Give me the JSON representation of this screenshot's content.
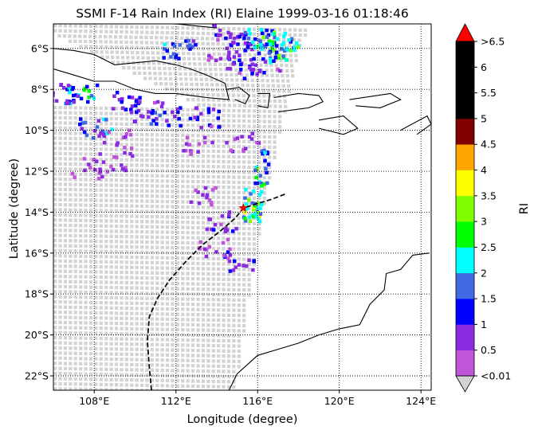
{
  "title": "SSMI F-14 Rain Index (RI) Elaine 1999-03-16 01:18:46",
  "xlabel": "Longitude (degree)",
  "ylabel": "Latitude (degree)",
  "colorbar": {
    "label": "RI",
    "tick_labels": [
      "<0.01",
      "0.5",
      "1",
      "1.5",
      "2",
      "2.5",
      "3",
      "3.5",
      "4",
      "4.5",
      "5",
      "5.5",
      "6",
      ">6.5"
    ],
    "levels": [
      0.01,
      0.5,
      1,
      1.5,
      2,
      2.5,
      3,
      3.5,
      4,
      4.5,
      5,
      5.5,
      6,
      6.5
    ],
    "colors": [
      "#bf55d9",
      "#8a2be2",
      "#0000ff",
      "#4169e1",
      "#00ffff",
      "#00ff00",
      "#7fff00",
      "#ffff00",
      "#ffa500",
      "#800000",
      "#000000",
      "#000000",
      "#000000"
    ],
    "under_color": "#d3d3d3",
    "over_color": "#ff0000"
  },
  "chart_data": {
    "type": "map",
    "lon_range": [
      106,
      124.5
    ],
    "lat_range": [
      -22.7,
      -4.8
    ],
    "x_ticks": [
      108,
      112,
      116,
      120,
      124
    ],
    "x_tick_labels": [
      "108°E",
      "112°E",
      "116°E",
      "120°E",
      "124°E"
    ],
    "y_ticks": [
      -6,
      -8,
      -10,
      -12,
      -14,
      -16,
      -18,
      -20,
      -22
    ],
    "y_tick_labels": [
      "6°S",
      "8°S",
      "10°S",
      "12°S",
      "14°S",
      "16°S",
      "18°S",
      "20°S",
      "22°S"
    ],
    "grid": "dotted",
    "storm_center": {
      "lon": 115.3,
      "lat": -13.8
    },
    "storm_track": [
      [
        110.8,
        -22.7
      ],
      [
        110.7,
        -21.6
      ],
      [
        110.6,
        -20.3
      ],
      [
        110.7,
        -19.1
      ],
      [
        111.1,
        -18.2
      ],
      [
        111.7,
        -17.3
      ],
      [
        112.5,
        -16.4
      ],
      [
        113.3,
        -15.6
      ],
      [
        114.2,
        -14.9
      ],
      [
        114.9,
        -14.3
      ],
      [
        115.3,
        -13.8
      ],
      [
        115.9,
        -13.6
      ],
      [
        116.6,
        -13.4
      ],
      [
        117.4,
        -13.1
      ]
    ],
    "swath_edges": {
      "east": [
        [
          114.8,
          -22.7
        ],
        [
          115.8,
          -16.0
        ],
        [
          116.3,
          -13.0
        ],
        [
          117.0,
          -10.0
        ],
        [
          117.9,
          -6.0
        ],
        [
          118.4,
          -4.8
        ]
      ],
      "west": [
        [
          106.0,
          -8.8
        ],
        [
          106.0,
          -22.7
        ]
      ]
    },
    "rain_areas": [
      {
        "lon": 114.5,
        "lat": -5.2,
        "ri": 1.0
      },
      {
        "lon": 115.4,
        "lat": -5.6,
        "ri": 1.2
      },
      {
        "lon": 116.1,
        "lat": -5.4,
        "ri": 2.2
      },
      {
        "lon": 116.8,
        "lat": -5.6,
        "ri": 2.7
      },
      {
        "lon": 117.2,
        "lat": -6.1,
        "ri": 2.8
      },
      {
        "lon": 116.3,
        "lat": -6.6,
        "ri": 1.1
      },
      {
        "lon": 115.2,
        "lat": -6.9,
        "ri": 1.1
      },
      {
        "lon": 114.3,
        "lat": -6.0,
        "ri": 0.8
      },
      {
        "lon": 112.1,
        "lat": -6.0,
        "ri": 1.7
      },
      {
        "lon": 107.3,
        "lat": -8.2,
        "ri": 2.2
      },
      {
        "lon": 106.4,
        "lat": -8.1,
        "ri": 1.2
      },
      {
        "lon": 109.4,
        "lat": -8.5,
        "ri": 1.1
      },
      {
        "lon": 110.5,
        "lat": -9.0,
        "ri": 1.0
      },
      {
        "lon": 111.4,
        "lat": -9.2,
        "ri": 1.3
      },
      {
        "lon": 113.4,
        "lat": -9.3,
        "ri": 1.1
      },
      {
        "lon": 108.0,
        "lat": -9.8,
        "ri": 1.7
      },
      {
        "lon": 109.0,
        "lat": -10.4,
        "ri": 0.5
      },
      {
        "lon": 113.0,
        "lat": -10.6,
        "ri": 0.5
      },
      {
        "lon": 115.2,
        "lat": -10.5,
        "ri": 0.7
      },
      {
        "lon": 116.9,
        "lat": -11.2,
        "ri": 2.2
      },
      {
        "lon": 116.6,
        "lat": -12.2,
        "ri": 2.6
      },
      {
        "lon": 116.1,
        "lat": -13.3,
        "ri": 3.1
      },
      {
        "lon": 115.9,
        "lat": -14.0,
        "ri": 2.9
      },
      {
        "lon": 114.2,
        "lat": -14.4,
        "ri": 1.0
      },
      {
        "lon": 115.0,
        "lat": -16.3,
        "ri": 1.1
      },
      {
        "lon": 113.2,
        "lat": -13.1,
        "ri": 0.5
      },
      {
        "lon": 113.8,
        "lat": -15.7,
        "ri": 0.5
      },
      {
        "lon": 107.6,
        "lat": -11.8,
        "ri": 0.6
      },
      {
        "lon": 109.0,
        "lat": -11.5,
        "ri": 0.7
      }
    ],
    "coastlines": [
      [
        [
          106.0,
          -6.0
        ],
        [
          107.0,
          -6.1
        ],
        [
          108.0,
          -6.3
        ],
        [
          109.0,
          -6.8
        ],
        [
          110.0,
          -6.7
        ],
        [
          111.0,
          -6.6
        ],
        [
          112.0,
          -6.8
        ],
        [
          112.7,
          -7.0
        ],
        [
          113.5,
          -7.3
        ],
        [
          114.4,
          -7.7
        ],
        [
          114.6,
          -8.5
        ],
        [
          113.5,
          -8.4
        ],
        [
          112.0,
          -8.2
        ],
        [
          111.0,
          -8.2
        ],
        [
          110.0,
          -8.0
        ],
        [
          109.0,
          -7.6
        ],
        [
          108.0,
          -7.6
        ],
        [
          107.0,
          -7.3
        ],
        [
          106.0,
          -7.0
        ]
      ],
      [
        [
          114.5,
          -8.0
        ],
        [
          115.1,
          -7.9
        ],
        [
          115.6,
          -8.3
        ],
        [
          115.4,
          -8.7
        ],
        [
          114.9,
          -8.5
        ]
      ],
      [
        [
          116.0,
          -8.2
        ],
        [
          116.6,
          -8.2
        ],
        [
          116.5,
          -8.9
        ],
        [
          116.0,
          -8.8
        ]
      ],
      [
        [
          116.8,
          -8.4
        ],
        [
          118.0,
          -8.2
        ],
        [
          119.0,
          -8.3
        ],
        [
          119.2,
          -8.6
        ],
        [
          118.5,
          -8.9
        ],
        [
          117.0,
          -9.1
        ]
      ],
      [
        [
          119.0,
          -9.5
        ],
        [
          120.2,
          -9.3
        ],
        [
          120.9,
          -9.9
        ],
        [
          120.2,
          -10.2
        ],
        [
          119.0,
          -9.9
        ]
      ],
      [
        [
          120.5,
          -8.5
        ],
        [
          122.5,
          -8.2
        ],
        [
          123.0,
          -8.5
        ],
        [
          122.0,
          -8.9
        ],
        [
          120.8,
          -8.8
        ]
      ],
      [
        [
          123.0,
          -10.0
        ],
        [
          124.3,
          -9.3
        ],
        [
          124.5,
          -9.7
        ],
        [
          123.8,
          -10.2
        ]
      ],
      [
        [
          112.0,
          -4.8
        ],
        [
          113.0,
          -4.9
        ],
        [
          114.0,
          -5.0
        ]
      ],
      [
        [
          114.6,
          -22.7
        ],
        [
          115.0,
          -21.9
        ],
        [
          116.0,
          -21.0
        ],
        [
          117.0,
          -20.7
        ],
        [
          118.0,
          -20.4
        ],
        [
          119.0,
          -20.0
        ],
        [
          120.0,
          -19.7
        ],
        [
          121.0,
          -19.5
        ],
        [
          121.5,
          -18.5
        ],
        [
          122.2,
          -17.8
        ],
        [
          122.3,
          -17.0
        ],
        [
          123.0,
          -16.8
        ],
        [
          123.6,
          -16.1
        ],
        [
          124.4,
          -16.0
        ]
      ]
    ]
  }
}
